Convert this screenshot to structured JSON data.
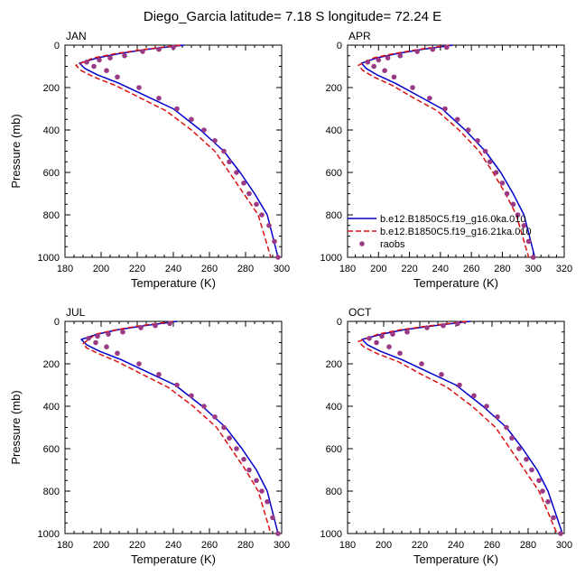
{
  "figure": {
    "title": "Diego_Garcia  latitude= 7.18 S longitude= 72.24 E"
  },
  "legend": {
    "placement": "inside APR panel, bottom-right",
    "entries": [
      {
        "label": "b.e12.B1850C5.f19_g16.0ka.010",
        "color": "#0000cc",
        "style": "solid"
      },
      {
        "label": "b.e12.B1850C5.f19_g16.21ka.010",
        "color": "#dd1111",
        "style": "dashed"
      },
      {
        "label": "raobs",
        "color": "#9b3a84",
        "style": "marker"
      }
    ]
  },
  "chart_data": [
    {
      "type": "line",
      "panel": "JAN",
      "xlabel": "Temperature (K)",
      "ylabel": "Pressure (mb)",
      "xlim": [
        180,
        300
      ],
      "ylim": [
        1000,
        0
      ],
      "xticks": [
        180,
        200,
        220,
        240,
        260,
        280,
        300
      ],
      "yticks": [
        0,
        200,
        400,
        600,
        800,
        1000
      ],
      "grid": false,
      "series": [
        {
          "name": "b.e12.B1850C5.f19_g16.0ka.010",
          "style": "solid",
          "color": "#0000cc",
          "x": [
            246,
            225,
            210,
            198,
            188,
            191,
            198,
            210,
            225,
            240,
            255,
            268,
            277,
            285,
            292,
            298
          ],
          "y": [
            0,
            20,
            40,
            60,
            85,
            110,
            140,
            180,
            240,
            300,
            400,
            500,
            600,
            700,
            800,
            1000
          ]
        },
        {
          "name": "b.e12.B1850C5.f19_g16.21ka.010",
          "style": "dashed",
          "color": "#dd1111",
          "x": [
            244,
            224,
            208,
            196,
            186,
            189,
            196,
            208,
            222,
            236,
            250,
            263,
            271,
            279,
            287,
            294
          ],
          "y": [
            0,
            20,
            40,
            60,
            95,
            120,
            150,
            190,
            250,
            310,
            400,
            500,
            600,
            700,
            800,
            1000
          ]
        },
        {
          "name": "raobs",
          "style": "markers",
          "color": "#9b3a84",
          "x": [
            240,
            232,
            223,
            213,
            205,
            199,
            192,
            196,
            203,
            209,
            221,
            232,
            242,
            250,
            257,
            263,
            268,
            271,
            275,
            279,
            282,
            286,
            289,
            293,
            296,
            298
          ],
          "y": [
            10,
            20,
            30,
            50,
            60,
            70,
            80,
            100,
            120,
            150,
            200,
            250,
            300,
            350,
            400,
            450,
            500,
            550,
            600,
            650,
            700,
            750,
            800,
            850,
            925,
            1000
          ]
        }
      ]
    },
    {
      "type": "line",
      "panel": "APR",
      "xlabel": "Temperature (K)",
      "ylabel": "",
      "xlim": [
        180,
        320
      ],
      "ylim": [
        1000,
        0
      ],
      "xticks": [
        180,
        200,
        220,
        240,
        260,
        280,
        300,
        320
      ],
      "yticks": [
        0,
        200,
        400,
        600,
        800,
        1000
      ],
      "grid": false,
      "series": [
        {
          "name": "b.e12.B1850C5.f19_g16.0ka.010",
          "style": "solid",
          "color": "#0000cc",
          "x": [
            248,
            228,
            212,
            199,
            189,
            192,
            199,
            211,
            226,
            241,
            256,
            269,
            279,
            287,
            294,
            301
          ],
          "y": [
            0,
            20,
            40,
            60,
            85,
            110,
            140,
            180,
            240,
            300,
            400,
            500,
            600,
            700,
            800,
            1000
          ]
        },
        {
          "name": "b.e12.B1850C5.f19_g16.21ka.010",
          "style": "dashed",
          "color": "#dd1111",
          "x": [
            246,
            226,
            210,
            197,
            187,
            190,
            197,
            209,
            223,
            238,
            252,
            265,
            274,
            282,
            289,
            297
          ],
          "y": [
            0,
            20,
            40,
            60,
            95,
            120,
            150,
            190,
            250,
            310,
            400,
            500,
            600,
            700,
            800,
            1000
          ]
        },
        {
          "name": "raobs",
          "style": "markers",
          "color": "#9b3a84",
          "x": [
            244,
            235,
            225,
            214,
            206,
            200,
            193,
            197,
            204,
            210,
            222,
            233,
            243,
            251,
            258,
            264,
            269,
            272,
            276,
            280,
            283,
            287,
            290,
            294,
            297,
            300
          ],
          "y": [
            10,
            20,
            30,
            50,
            60,
            70,
            80,
            100,
            120,
            150,
            200,
            250,
            300,
            350,
            400,
            450,
            500,
            550,
            600,
            650,
            700,
            750,
            800,
            850,
            925,
            1000
          ]
        }
      ]
    },
    {
      "type": "line",
      "panel": "JUL",
      "xlabel": "Temperature (K)",
      "ylabel": "Pressure (mb)",
      "xlim": [
        180,
        300
      ],
      "ylim": [
        1000,
        0
      ],
      "xticks": [
        180,
        200,
        220,
        240,
        260,
        280,
        300
      ],
      "yticks": [
        0,
        200,
        400,
        600,
        800,
        1000
      ],
      "grid": false,
      "series": [
        {
          "name": "b.e12.B1850C5.f19_g16.0ka.010",
          "style": "solid",
          "color": "#0000cc",
          "x": [
            242,
            224,
            209,
            198,
            189,
            192,
            199,
            211,
            226,
            241,
            256,
            269,
            278,
            286,
            292,
            298
          ],
          "y": [
            0,
            20,
            40,
            60,
            85,
            110,
            140,
            180,
            240,
            300,
            400,
            500,
            600,
            700,
            800,
            1000
          ]
        },
        {
          "name": "b.e12.B1850C5.f19_g16.21ka.010",
          "style": "dashed",
          "color": "#dd1111",
          "x": [
            240,
            222,
            208,
            197,
            190,
            192,
            198,
            209,
            223,
            237,
            251,
            264,
            272,
            280,
            287,
            294
          ],
          "y": [
            0,
            20,
            40,
            60,
            105,
            125,
            150,
            190,
            250,
            310,
            400,
            500,
            600,
            700,
            800,
            1000
          ]
        },
        {
          "name": "raobs",
          "style": "markers",
          "color": "#9b3a84",
          "x": [
            238,
            230,
            222,
            212,
            204,
            198,
            193,
            197,
            203,
            209,
            221,
            232,
            242,
            250,
            257,
            263,
            268,
            271,
            275,
            279,
            282,
            286,
            289,
            292,
            295,
            298
          ],
          "y": [
            10,
            20,
            30,
            50,
            60,
            70,
            80,
            100,
            120,
            150,
            200,
            250,
            300,
            350,
            400,
            450,
            500,
            550,
            600,
            650,
            700,
            750,
            800,
            850,
            925,
            1000
          ]
        }
      ]
    },
    {
      "type": "line",
      "panel": "OCT",
      "xlabel": "Temperature (K)",
      "ylabel": "",
      "xlim": [
        180,
        300
      ],
      "ylim": [
        1000,
        0
      ],
      "xticks": [
        180,
        200,
        220,
        240,
        260,
        280,
        300
      ],
      "yticks": [
        0,
        200,
        400,
        600,
        800,
        1000
      ],
      "grid": false,
      "series": [
        {
          "name": "b.e12.B1850C5.f19_g16.0ka.010",
          "style": "solid",
          "color": "#0000cc",
          "x": [
            248,
            228,
            211,
            199,
            188,
            191,
            198,
            210,
            225,
            240,
            255,
            268,
            277,
            285,
            291,
            299
          ],
          "y": [
            0,
            20,
            40,
            60,
            85,
            110,
            140,
            180,
            240,
            300,
            400,
            500,
            600,
            700,
            800,
            1000
          ]
        },
        {
          "name": "b.e12.B1850C5.f19_g16.21ka.010",
          "style": "dashed",
          "color": "#dd1111",
          "x": [
            246,
            226,
            209,
            197,
            186,
            189,
            196,
            208,
            221,
            235,
            249,
            262,
            270,
            278,
            286,
            296
          ],
          "y": [
            0,
            20,
            40,
            60,
            95,
            120,
            150,
            190,
            250,
            310,
            400,
            500,
            600,
            700,
            800,
            1000
          ]
        },
        {
          "name": "raobs",
          "style": "markers",
          "color": "#9b3a84",
          "x": [
            241,
            233,
            224,
            213,
            205,
            199,
            192,
            196,
            203,
            209,
            221,
            232,
            242,
            250,
            257,
            263,
            268,
            271,
            275,
            279,
            282,
            286,
            288,
            291,
            294,
            298
          ],
          "y": [
            10,
            20,
            30,
            50,
            60,
            70,
            80,
            100,
            120,
            150,
            200,
            250,
            300,
            350,
            400,
            450,
            500,
            550,
            600,
            650,
            700,
            750,
            800,
            850,
            925,
            1000
          ]
        }
      ]
    }
  ]
}
